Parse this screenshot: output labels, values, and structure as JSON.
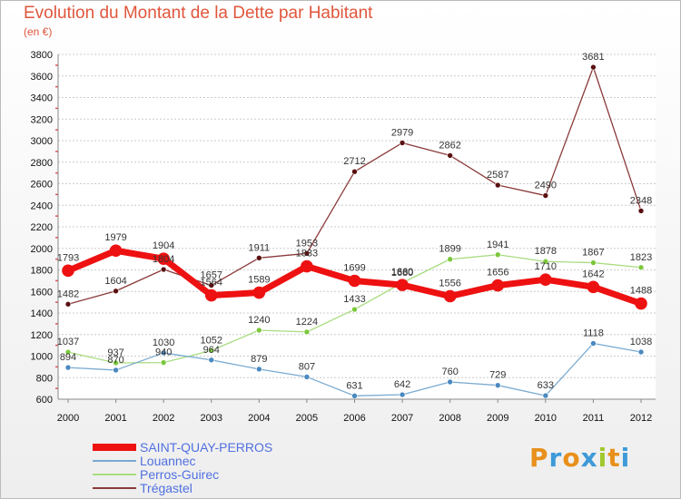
{
  "chart_data": {
    "type": "line",
    "title": "Evolution du Montant de la Dette par Habitant",
    "subtitle": "(en €)",
    "x": [
      "2000",
      "2001",
      "2002",
      "2003",
      "2004",
      "2005",
      "2006",
      "2007",
      "2008",
      "2009",
      "2010",
      "2011",
      "2012"
    ],
    "ylim": [
      600,
      3800
    ],
    "yticks": [
      600,
      800,
      1000,
      1200,
      1400,
      1600,
      1800,
      2000,
      2200,
      2400,
      2600,
      2800,
      3000,
      3200,
      3400,
      3600,
      3800
    ],
    "grid": "horizontal",
    "legend_position": "bottom-left",
    "series": [
      {
        "name": "Trégastel",
        "color": "#8b3a3a",
        "marker": "#5a1010",
        "width": 1.3,
        "values": [
          1482,
          1604,
          1804,
          1657,
          1911,
          1953,
          2712,
          2979,
          2862,
          2587,
          2490,
          3681,
          2348
        ]
      },
      {
        "name": "Perros-Guirec",
        "color": "#a8dc80",
        "marker": "#7cc83c",
        "width": 1.3,
        "values": [
          1037,
          937,
          940,
          1052,
          1240,
          1224,
          1433,
          1680,
          1899,
          1941,
          1878,
          1867,
          1823
        ]
      },
      {
        "name": "Louannec",
        "color": "#7aaad0",
        "marker": "#4a88c0",
        "width": 1.3,
        "values": [
          894,
          870,
          1030,
          964,
          879,
          807,
          631,
          642,
          760,
          729,
          633,
          1118,
          1038
        ]
      },
      {
        "name": "SAINT-QUAY-PERROS",
        "color": "#ee1111",
        "marker": "#ee1111",
        "width": 7,
        "values": [
          1793,
          1979,
          1904,
          1564,
          1589,
          1833,
          1699,
          1660,
          1556,
          1656,
          1710,
          1642,
          1488
        ]
      }
    ],
    "legend": [
      "SAINT-QUAY-PERROS",
      "Louannec",
      "Perros-Guirec",
      "Trégastel"
    ]
  },
  "logo": {
    "text": "Proxiti",
    "letters": [
      "P",
      "r",
      "o",
      "x",
      "i",
      "t",
      "i"
    ],
    "colors": [
      "#e8901c",
      "#3e9ad8",
      "#e8901c",
      "#3e9ad8",
      "#a0c82c",
      "#e8901c",
      "#3e9ad8"
    ]
  }
}
